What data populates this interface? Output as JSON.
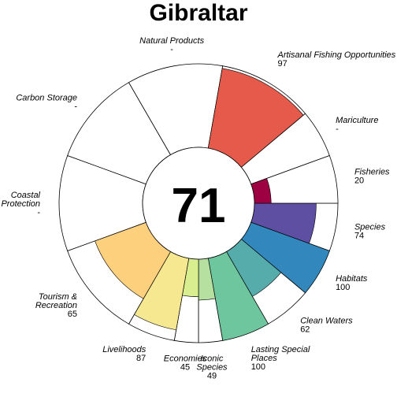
{
  "chart_data": {
    "type": "flower",
    "title": "Gibraltar",
    "overall_score": "71",
    "value_range": [
      0,
      100
    ],
    "petals": [
      {
        "label": [
          "Species"
        ],
        "value_text": "74",
        "value": 74,
        "weight": 1,
        "color": "#5e4fa2"
      },
      {
        "label": [
          "Habitats"
        ],
        "value_text": "100",
        "value": 100,
        "weight": 1,
        "color": "#3288bd"
      },
      {
        "label": [
          "Clean Waters"
        ],
        "value_text": "62",
        "value": 62,
        "weight": 1,
        "color": "#56abab"
      },
      {
        "label": [
          "Lasting Special",
          "Places"
        ],
        "value_text": "100",
        "value": 100,
        "weight": 1,
        "color": "#6ec69e"
      },
      {
        "label": [
          "Iconic",
          "Species"
        ],
        "value_text": "49",
        "value": 49,
        "weight": 0.5,
        "color": "#b6e09f"
      },
      {
        "label": [
          "Economies"
        ],
        "value_text": "45",
        "value": 45,
        "weight": 0.5,
        "color": "#d9ef8f"
      },
      {
        "label": [
          "Livelihoods"
        ],
        "value_text": "87",
        "value": 87,
        "weight": 1,
        "color": "#f6e890"
      },
      {
        "label": [
          "Tourism &",
          "Recreation"
        ],
        "value_text": "65",
        "value": 65,
        "weight": 2,
        "color": "#fdd07e"
      },
      {
        "label": [
          "Coastal",
          "Protection"
        ],
        "value_text": "-",
        "value": null,
        "weight": 2,
        "color": "#fdae61"
      },
      {
        "label": [
          "Carbon Storage"
        ],
        "value_text": "-",
        "value": null,
        "weight": 2,
        "color": "#f67c4a"
      },
      {
        "label": [
          "Natural Products"
        ],
        "value_text": "-",
        "value": null,
        "weight": 2,
        "color": "#f46d43"
      },
      {
        "label": [
          "Artisanal Fishing Opportunities"
        ],
        "value_text": "97",
        "value": 97,
        "weight": 2,
        "color": "#e55a4b"
      },
      {
        "label": [
          "Mariculture"
        ],
        "value_text": "-",
        "value": null,
        "weight": 1,
        "color": "#c8314a"
      },
      {
        "label": [
          "Fisheries"
        ],
        "value_text": "20",
        "value": 20,
        "weight": 1,
        "color": "#9e0142"
      }
    ]
  }
}
